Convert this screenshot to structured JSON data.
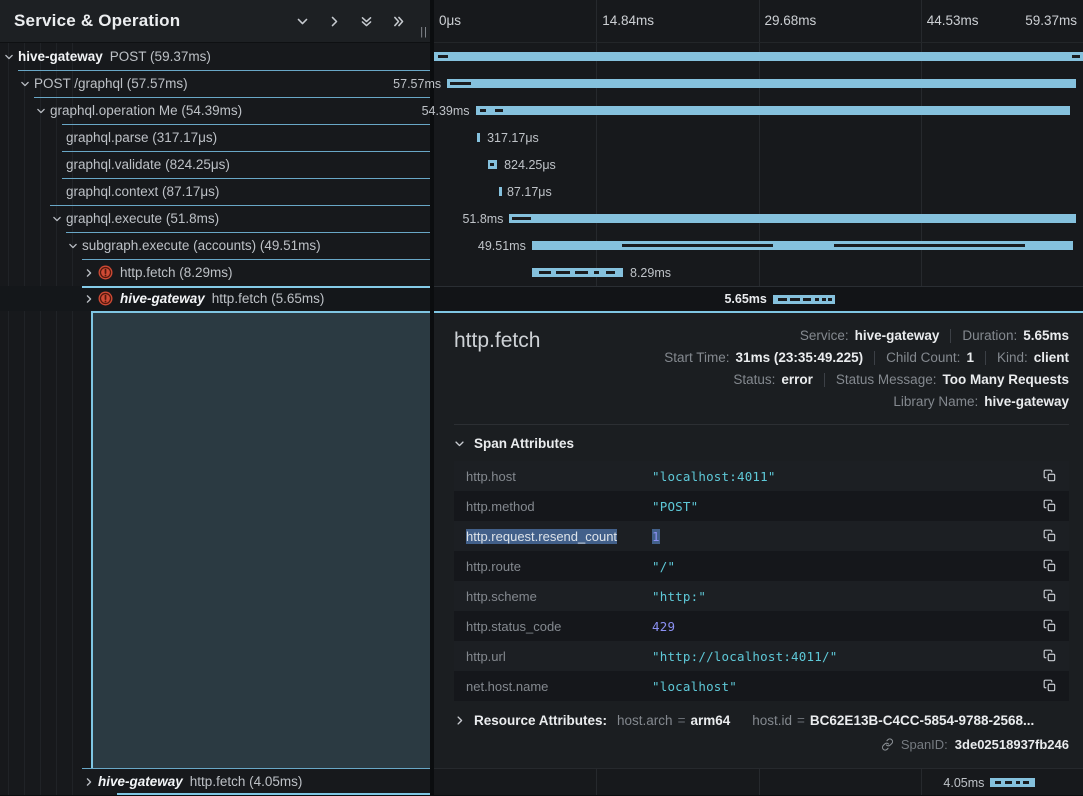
{
  "left_header": {
    "title": "Service & Operation",
    "resize_handle": "||",
    "buttons": [
      {
        "name": "collapse-one",
        "icon": "chevron-down"
      },
      {
        "name": "expand-one",
        "icon": "chevron-right"
      },
      {
        "name": "collapse-all",
        "icon": "chevrons-down"
      },
      {
        "name": "expand-all",
        "icon": "chevrons-right"
      }
    ]
  },
  "axis": {
    "total_ms": 59.37,
    "ticks": [
      {
        "label": "0μs",
        "pos": 0
      },
      {
        "label": "14.84ms",
        "pos": 25
      },
      {
        "label": "29.68ms",
        "pos": 50
      },
      {
        "label": "44.53ms",
        "pos": 75
      },
      {
        "label": "59.37ms",
        "pos": 100
      }
    ]
  },
  "spans": [
    {
      "service": "hive-gateway",
      "service_style": "bold",
      "label": "POST (59.37ms)",
      "indent": 0,
      "chevron": "down",
      "error": false,
      "selected": false,
      "bar": {
        "start_ms": 0,
        "dur_ms": 59.37,
        "label": "",
        "label_side": null,
        "marks": [
          [
            0.35,
            0.9
          ],
          [
            58.35,
            0.75
          ]
        ]
      }
    },
    {
      "service": null,
      "label": "POST /graphql (57.57ms)",
      "indent": 1,
      "chevron": "down",
      "error": false,
      "selected": false,
      "bar": {
        "start_ms": 1.2,
        "dur_ms": 57.57,
        "label": "57.57ms",
        "label_side": "left",
        "marks": [
          [
            1.45,
            1.9
          ]
        ]
      }
    },
    {
      "service": null,
      "label": "graphql.operation Me (54.39ms)",
      "indent": 2,
      "chevron": "down",
      "error": false,
      "selected": false,
      "bar": {
        "start_ms": 3.8,
        "dur_ms": 54.39,
        "label": "54.39ms",
        "label_side": "left",
        "marks": [
          [
            4.2,
            0.55
          ],
          [
            5.6,
            0.75
          ]
        ]
      }
    },
    {
      "service": null,
      "label": "graphql.parse (317.17μs)",
      "indent": 3,
      "chevron": null,
      "error": false,
      "selected": false,
      "bar": {
        "start_ms": 3.9,
        "dur_ms": 0.317,
        "label": "317.17μs",
        "label_side": "right",
        "marks": []
      }
    },
    {
      "service": null,
      "label": "graphql.validate (824.25μs)",
      "indent": 3,
      "chevron": null,
      "error": false,
      "selected": false,
      "bar": {
        "start_ms": 4.95,
        "dur_ms": 0.824,
        "label": "824.25μs",
        "label_side": "right",
        "marks": [
          [
            5.15,
            0.2
          ]
        ]
      }
    },
    {
      "service": null,
      "label": "graphql.context (87.17μs)",
      "indent": 3,
      "chevron": null,
      "error": false,
      "selected": false,
      "bar": {
        "start_ms": 5.95,
        "dur_ms": 0.087,
        "label": "87.17μs",
        "label_side": "right",
        "marks": []
      }
    },
    {
      "service": null,
      "label": "graphql.execute (51.8ms)",
      "indent": 3,
      "chevron": "down",
      "error": false,
      "selected": false,
      "bar": {
        "start_ms": 6.9,
        "dur_ms": 51.8,
        "label": "51.8ms",
        "label_side": "left",
        "marks": [
          [
            7.15,
            1.7
          ]
        ]
      }
    },
    {
      "service": null,
      "label": "subgraph.execute (accounts) (49.51ms)",
      "indent": 4,
      "chevron": "down",
      "error": false,
      "selected": false,
      "bar": {
        "start_ms": 8.95,
        "dur_ms": 49.51,
        "label": "49.51ms",
        "label_side": "left",
        "marks": [
          [
            17.2,
            13.8
          ],
          [
            36.6,
            17.5
          ]
        ]
      }
    },
    {
      "service": null,
      "label": "http.fetch (8.29ms)",
      "indent": 5,
      "chevron": "right",
      "error": true,
      "selected": false,
      "bar": {
        "start_ms": 9.0,
        "dur_ms": 8.29,
        "label": "8.29ms",
        "label_side": "right",
        "marks": [
          [
            9.6,
            1.1
          ],
          [
            11.2,
            1.2
          ],
          [
            12.9,
            1.2
          ],
          [
            14.6,
            0.5
          ],
          [
            15.7,
            0.9
          ]
        ]
      }
    },
    {
      "service": "hive-gateway",
      "service_style": "bold-italic",
      "label": "http.fetch (5.65ms)",
      "indent": 5,
      "chevron": "right",
      "error": true,
      "selected": true,
      "bar": {
        "start_ms": 31.0,
        "dur_ms": 5.65,
        "label": "5.65ms",
        "label_side": "left",
        "marks": [
          [
            31.5,
            0.8
          ],
          [
            32.6,
            0.9
          ],
          [
            33.8,
            0.7
          ],
          [
            34.9,
            0.3
          ],
          [
            35.5,
            0.3
          ],
          [
            36.0,
            0.4
          ]
        ]
      }
    }
  ],
  "bottom_span": {
    "service": "hive-gateway",
    "service_style": "bold-italic",
    "label": "http.fetch (4.05ms)",
    "indent": 5,
    "chevron": "right",
    "error": false,
    "selected": false,
    "bar": {
      "start_ms": 50.9,
      "dur_ms": 4.05,
      "label": "4.05ms",
      "label_side": "left",
      "marks": [
        [
          51.3,
          0.6
        ],
        [
          52.2,
          0.7
        ],
        [
          53.2,
          0.4
        ],
        [
          53.9,
          0.5
        ]
      ]
    }
  },
  "detail": {
    "title": "http.fetch",
    "meta_lines": [
      [
        {
          "label": "Service:",
          "value": "hive-gateway"
        },
        {
          "label": "Duration:",
          "value": "5.65ms"
        }
      ],
      [
        {
          "label": "Start Time:",
          "value": "31ms (23:35:49.225)"
        },
        {
          "label": "Child Count:",
          "value": "1"
        },
        {
          "label": "Kind:",
          "value": "client"
        }
      ],
      [
        {
          "label": "Status:",
          "value": "error"
        },
        {
          "label": "Status Message:",
          "value": "Too Many Requests"
        }
      ],
      [
        {
          "label": "Library Name:",
          "value": "hive-gateway"
        }
      ]
    ],
    "attributes_header": "Span Attributes",
    "attributes": [
      {
        "key": "http.host",
        "value": "\"localhost:4011\"",
        "type": "string",
        "selected": false
      },
      {
        "key": "http.method",
        "value": "\"POST\"",
        "type": "string",
        "selected": false
      },
      {
        "key": "http.request.resend_count",
        "value": "1",
        "type": "number",
        "selected": true
      },
      {
        "key": "http.route",
        "value": "\"/\"",
        "type": "string",
        "selected": false
      },
      {
        "key": "http.scheme",
        "value": "\"http:\"",
        "type": "string",
        "selected": false
      },
      {
        "key": "http.status_code",
        "value": "429",
        "type": "number",
        "selected": false
      },
      {
        "key": "http.url",
        "value": "\"http://localhost:4011/\"",
        "type": "string",
        "selected": false
      },
      {
        "key": "net.host.name",
        "value": "\"localhost\"",
        "type": "string",
        "selected": false
      }
    ],
    "resource": {
      "header": "Resource Attributes:",
      "pairs": [
        {
          "key": "host.arch",
          "value": "arm64"
        },
        {
          "key": "host.id",
          "value": "BC62E13B-C4CC-5854-9788-2568..."
        }
      ]
    },
    "span_id": {
      "label": "SpanID:",
      "value": "3de02518937fb246"
    }
  },
  "colors": {
    "accent": "#7fc6e3",
    "bar": "#85c1dd",
    "error": "#cf4a35",
    "string_value": "#5ec9d8",
    "number_value": "#8b90f2"
  }
}
